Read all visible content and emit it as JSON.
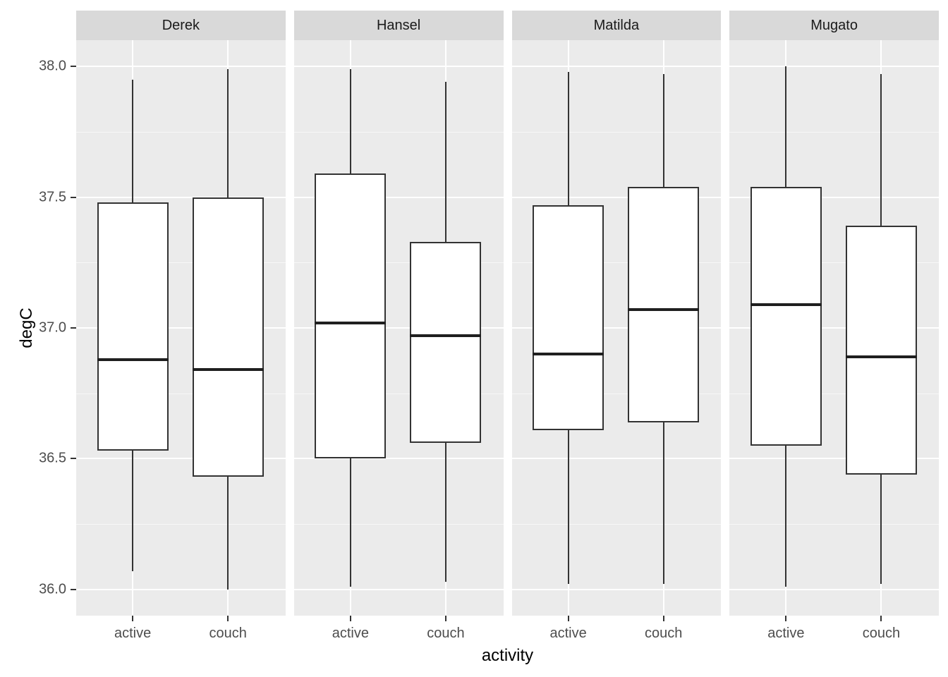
{
  "chart_data": {
    "type": "boxplot",
    "title": "",
    "xlabel": "activity",
    "ylabel": "degC",
    "facet_labels": [
      "Derek",
      "Hansel",
      "Matilda",
      "Mugato"
    ],
    "categories": [
      "active",
      "couch"
    ],
    "ylim": [
      35.9,
      38.1
    ],
    "yticks": [
      36.0,
      36.5,
      37.0,
      37.5,
      38.0
    ],
    "ytick_labels": [
      "36.0",
      "36.5",
      "37.0",
      "37.5",
      "38.0"
    ],
    "yminor": [
      36.25,
      36.75,
      37.25,
      37.75
    ],
    "grid": "white major and minor horizontal lines, white vertical line per category",
    "legend": "none",
    "facets": [
      {
        "label": "Derek",
        "boxes": [
          {
            "category": "active",
            "min": 36.07,
            "q1": 36.53,
            "median": 36.88,
            "q3": 37.48,
            "max": 37.95
          },
          {
            "category": "couch",
            "min": 36.0,
            "q1": 36.43,
            "median": 36.84,
            "q3": 37.5,
            "max": 37.99
          }
        ]
      },
      {
        "label": "Hansel",
        "boxes": [
          {
            "category": "active",
            "min": 36.01,
            "q1": 36.5,
            "median": 37.02,
            "q3": 37.59,
            "max": 37.99
          },
          {
            "category": "couch",
            "min": 36.03,
            "q1": 36.56,
            "median": 36.97,
            "q3": 37.33,
            "max": 37.94
          }
        ]
      },
      {
        "label": "Matilda",
        "boxes": [
          {
            "category": "active",
            "min": 36.02,
            "q1": 36.61,
            "median": 36.9,
            "q3": 37.47,
            "max": 37.98
          },
          {
            "category": "couch",
            "min": 36.02,
            "q1": 36.64,
            "median": 37.07,
            "q3": 37.54,
            "max": 37.97
          }
        ]
      },
      {
        "label": "Mugato",
        "boxes": [
          {
            "category": "active",
            "min": 36.01,
            "q1": 36.55,
            "median": 37.09,
            "q3": 37.54,
            "max": 38.0
          },
          {
            "category": "couch",
            "min": 36.02,
            "q1": 36.44,
            "median": 36.89,
            "q3": 37.39,
            "max": 37.97
          }
        ]
      }
    ]
  },
  "style": {
    "panel_bg": "#EBEBEB",
    "strip_bg": "#D9D9D9",
    "grid_color": "#FFFFFF",
    "box_stroke": "#333333",
    "box_fill": "#FFFFFF",
    "median_color": "#1F1F1F",
    "axis_text_color": "#4D4D4D",
    "strip_text_color": "#1A1A1A",
    "axis_title_color": "#000000"
  }
}
